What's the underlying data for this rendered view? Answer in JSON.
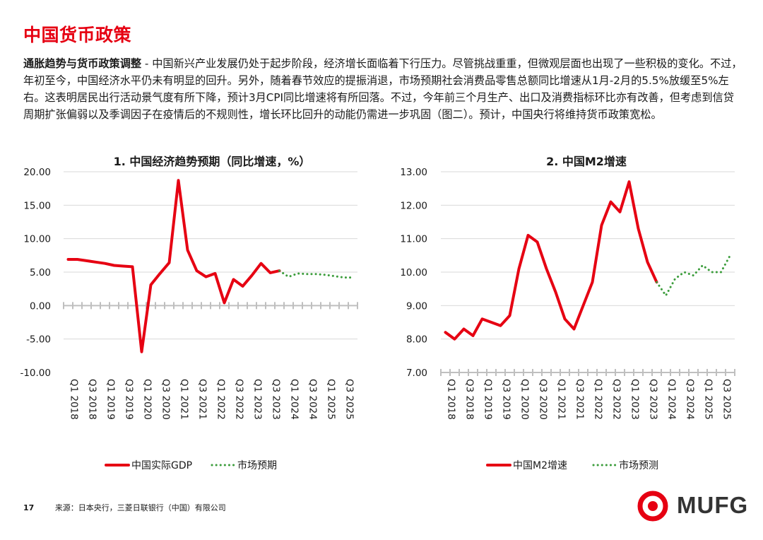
{
  "header": {
    "title": "中国货币政策"
  },
  "intro": {
    "lead": "通胀趋势与货币政策调整",
    "body": " - 中国新兴产业发展仍处于起步阶段，经济增长面临着下行压力。尽管挑战重重，但微观层面也出现了一些积极的变化。不过，年初至今，中国经济水平仍未有明显的回升。另外，随着春节效应的提振消退，市场预期社会消费品零售总额同比增速从1月-2月的5.5%放缓至5%左右。这表明居民出行活动景气度有所下降，预计3月CPI同比增速将有所回落。不过，今年前三个月生产、出口及消费指标环比亦有改善，但考虑到信贷周期扩张偏弱以及季调因子在疫情后的不规则性，增长环比回升的动能仍需进一步巩固（图二）。预计，中国央行将维持货币政策宽松。"
  },
  "chart_data": [
    {
      "type": "line",
      "title": "1. 中国经济趋势预期（同比增速，%）",
      "xlabel": "",
      "ylabel": "",
      "ylim": [
        -10,
        20
      ],
      "yticks": [
        "20.00",
        "15.00",
        "10.00",
        "5.00",
        "0.00",
        "-5.00",
        "-10.00"
      ],
      "xticks": [
        "Q1 2018",
        "Q3 2018",
        "Q1 2019",
        "Q3 2019",
        "Q1 2020",
        "Q3 2020",
        "Q1 2021",
        "Q3 2021",
        "Q1 2022",
        "Q3 2022",
        "Q1 2023",
        "Q3 2023",
        "Q1 2024",
        "Q3 2024",
        "Q1 2025",
        "Q3 2025"
      ],
      "x_quarters": 32,
      "series": [
        {
          "name": "中国实际GDP",
          "color": "#e60012",
          "style": "solid",
          "x": [
            "Q1 2018",
            "Q2 2018",
            "Q3 2018",
            "Q4 2018",
            "Q1 2019",
            "Q2 2019",
            "Q3 2019",
            "Q4 2019",
            "Q1 2020",
            "Q2 2020",
            "Q3 2020",
            "Q4 2020",
            "Q1 2021",
            "Q2 2021",
            "Q3 2021",
            "Q4 2021",
            "Q1 2022",
            "Q2 2022",
            "Q3 2022",
            "Q4 2022",
            "Q1 2023",
            "Q2 2023",
            "Q3 2023",
            "Q4 2023"
          ],
          "values": [
            6.9,
            6.9,
            6.7,
            6.5,
            6.3,
            6.0,
            5.9,
            5.8,
            -6.9,
            3.1,
            4.8,
            6.4,
            18.7,
            8.3,
            5.2,
            4.3,
            4.8,
            0.4,
            3.9,
            2.9,
            4.5,
            6.3,
            4.9,
            5.2
          ]
        },
        {
          "name": "市场预期",
          "color": "#3c9d3c",
          "style": "dotted",
          "x": [
            "Q4 2023",
            "Q1 2024",
            "Q2 2024",
            "Q3 2024",
            "Q4 2024",
            "Q1 2025",
            "Q2 2025",
            "Q3 2025",
            "Q4 2025"
          ],
          "values": [
            5.2,
            4.3,
            4.8,
            4.7,
            4.7,
            4.6,
            4.4,
            4.2,
            4.2
          ]
        }
      ]
    },
    {
      "type": "line",
      "title": "2. 中国M2增速",
      "xlabel": "",
      "ylabel": "",
      "ylim": [
        7,
        13
      ],
      "yticks": [
        "13.00",
        "12.00",
        "11.00",
        "10.00",
        "9.00",
        "8.00",
        "7.00"
      ],
      "xticks": [
        "Q1 2018",
        "Q3 2018",
        "Q1 2019",
        "Q3 2019",
        "Q1 2020",
        "Q3 2020",
        "Q1 2021",
        "Q3 2021",
        "Q1 2022",
        "Q3 2022",
        "Q1 2023",
        "Q3 2023",
        "Q1 2024",
        "Q3 2024",
        "Q1 2025",
        "Q3 2025"
      ],
      "x_quarters": 32,
      "series": [
        {
          "name": "中国M2增速",
          "color": "#e60012",
          "style": "solid",
          "x": [
            "Q1 2018",
            "Q2 2018",
            "Q3 2018",
            "Q4 2018",
            "Q1 2019",
            "Q2 2019",
            "Q3 2019",
            "Q4 2019",
            "Q1 2020",
            "Q2 2020",
            "Q3 2020",
            "Q4 2020",
            "Q1 2021",
            "Q2 2021",
            "Q3 2021",
            "Q4 2021",
            "Q1 2022",
            "Q2 2022",
            "Q3 2022",
            "Q4 2022",
            "Q1 2023",
            "Q2 2023",
            "Q3 2023",
            "Q4 2023"
          ],
          "values": [
            8.2,
            8.0,
            8.3,
            8.1,
            8.6,
            8.5,
            8.4,
            8.7,
            10.1,
            11.1,
            10.9,
            10.1,
            9.4,
            8.6,
            8.3,
            9.0,
            9.7,
            11.4,
            12.1,
            11.8,
            12.7,
            11.3,
            10.3,
            9.7
          ]
        },
        {
          "name": "市场预测",
          "color": "#3c9d3c",
          "style": "dotted",
          "x": [
            "Q4 2023",
            "Q1 2024",
            "Q2 2024",
            "Q3 2024",
            "Q4 2024",
            "Q1 2025",
            "Q2 2025",
            "Q3 2025",
            "Q4 2025"
          ],
          "values": [
            9.7,
            9.3,
            9.8,
            10.0,
            9.9,
            10.2,
            10.0,
            10.0,
            10.5
          ]
        }
      ]
    }
  ],
  "footer": {
    "page_number": "17",
    "source": "来源：日本央行，三菱日联银行（中国）有限公司"
  },
  "logo": {
    "text": "MUFG",
    "color": "#e60012"
  }
}
